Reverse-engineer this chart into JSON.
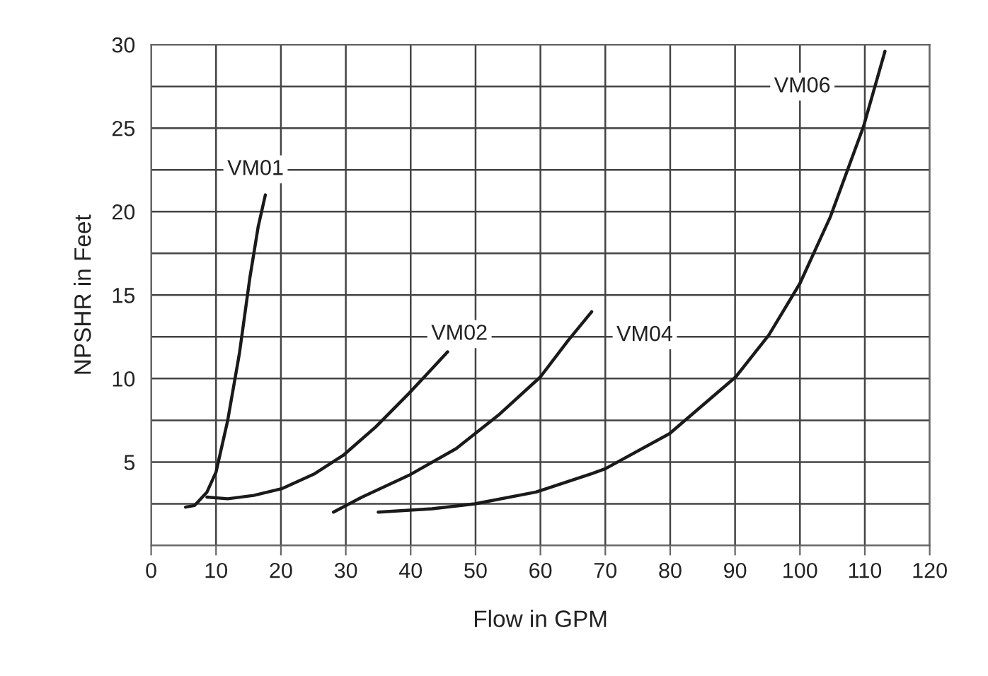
{
  "chart_data": {
    "type": "line",
    "xlabel": "Flow in GPM",
    "ylabel": "NPSHR in Feet",
    "series": [
      {
        "name": "VM01",
        "color": "#1a1a1a",
        "x": [
          5.3,
          6.7,
          8.6,
          10,
          11.8,
          13.6,
          15.2,
          16.5,
          17.6
        ],
        "values": [
          2.3,
          2.4,
          3.2,
          4.4,
          7.5,
          11.5,
          16,
          19.1,
          21.0
        ]
      },
      {
        "name": "VM02",
        "color": "#1a1a1a",
        "x": [
          8.6,
          11.8,
          15.8,
          20.1,
          25.2,
          29.6,
          34.6,
          39.7,
          43.3,
          45.7
        ],
        "values": [
          2.9,
          2.8,
          3.0,
          3.4,
          4.3,
          5.4,
          7.1,
          9.1,
          10.6,
          11.6
        ]
      },
      {
        "name": "VM04",
        "color": "#1a1a1a",
        "x": [
          28.1,
          32.5,
          39.7,
          47,
          53.5,
          60,
          64.3,
          67.9
        ],
        "values": [
          2.0,
          2.9,
          4.2,
          5.8,
          7.8,
          10.1,
          12.3,
          14.0
        ]
      },
      {
        "name": "VM06",
        "color": "#1a1a1a",
        "x": [
          35,
          43.3,
          49.9,
          59.3,
          67.9,
          70,
          79.9,
          90.1,
          95.2,
          100,
          104.7,
          109.8,
          113.1
        ],
        "values": [
          2.0,
          2.2,
          2.5,
          3.2,
          4.3,
          4.6,
          6.7,
          10.1,
          12.6,
          15.7,
          19.7,
          25.1,
          29.6
        ]
      }
    ],
    "xlim": [
      0,
      120
    ],
    "xticks": [
      0,
      10,
      20,
      30,
      40,
      50,
      60,
      70,
      80,
      90,
      100,
      110,
      120
    ],
    "ylim": [
      0,
      30
    ],
    "yticks": [
      {
        "value": 0,
        "label": null
      },
      {
        "value": 2.5,
        "label": null
      },
      5,
      {
        "value": 7.5,
        "label": null
      },
      10,
      {
        "value": 12.5,
        "label": null
      },
      15,
      {
        "value": 17.5,
        "label": null
      },
      20,
      {
        "value": 22.5,
        "label": null
      },
      25,
      {
        "value": 27.5,
        "label": null
      },
      30
    ],
    "grid": true,
    "legend": false,
    "marker": "none",
    "line_style": "solid"
  }
}
